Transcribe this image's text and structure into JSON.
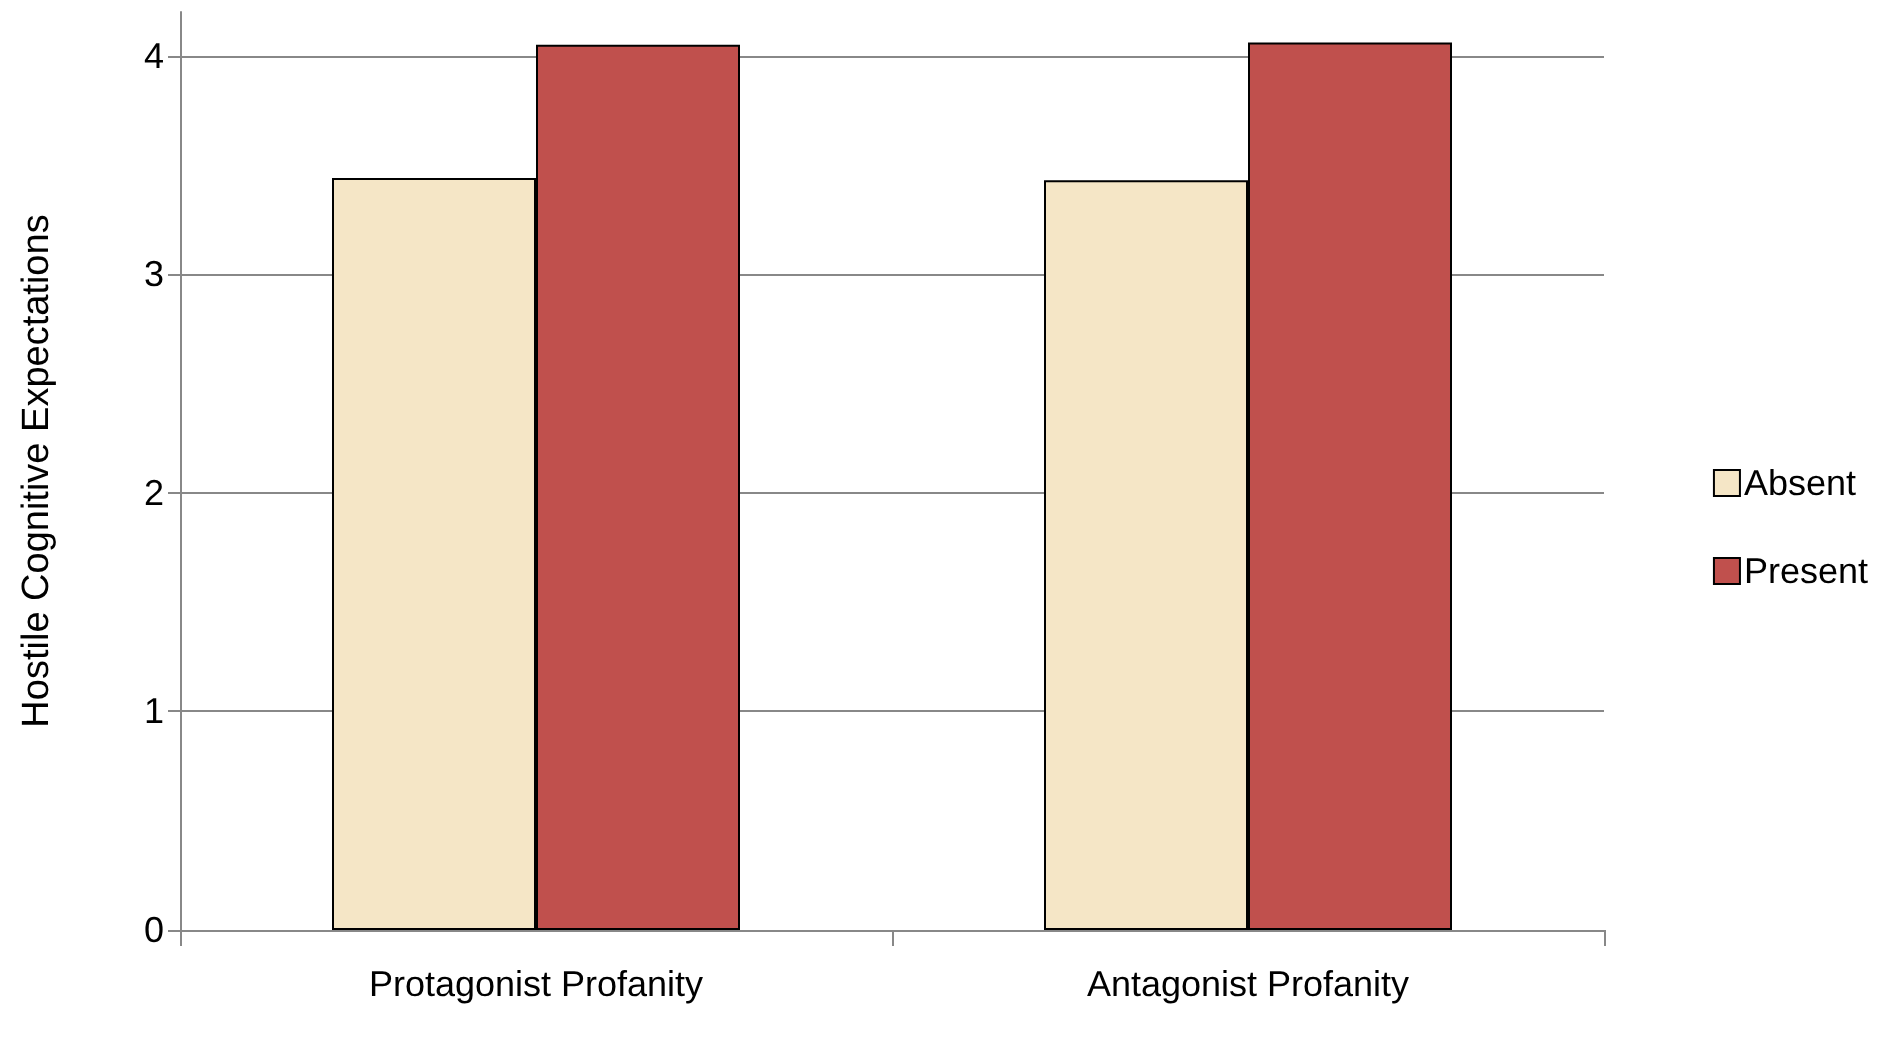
{
  "chart_data": {
    "type": "bar",
    "ylabel": "Hostile Cognitive Expectations",
    "categories": [
      "Protagonist Profanity",
      "Antagonist Profanity"
    ],
    "series": [
      {
        "name": "Absent",
        "color": "#f5e6c6",
        "values": [
          3.44,
          3.43
        ]
      },
      {
        "name": "Present",
        "color": "#c0504d",
        "values": [
          4.05,
          4.06
        ]
      }
    ],
    "ylim": [
      0,
      4.2
    ],
    "yticks": [
      0,
      1,
      2,
      3,
      4
    ],
    "grid": "y",
    "legend": "right"
  }
}
